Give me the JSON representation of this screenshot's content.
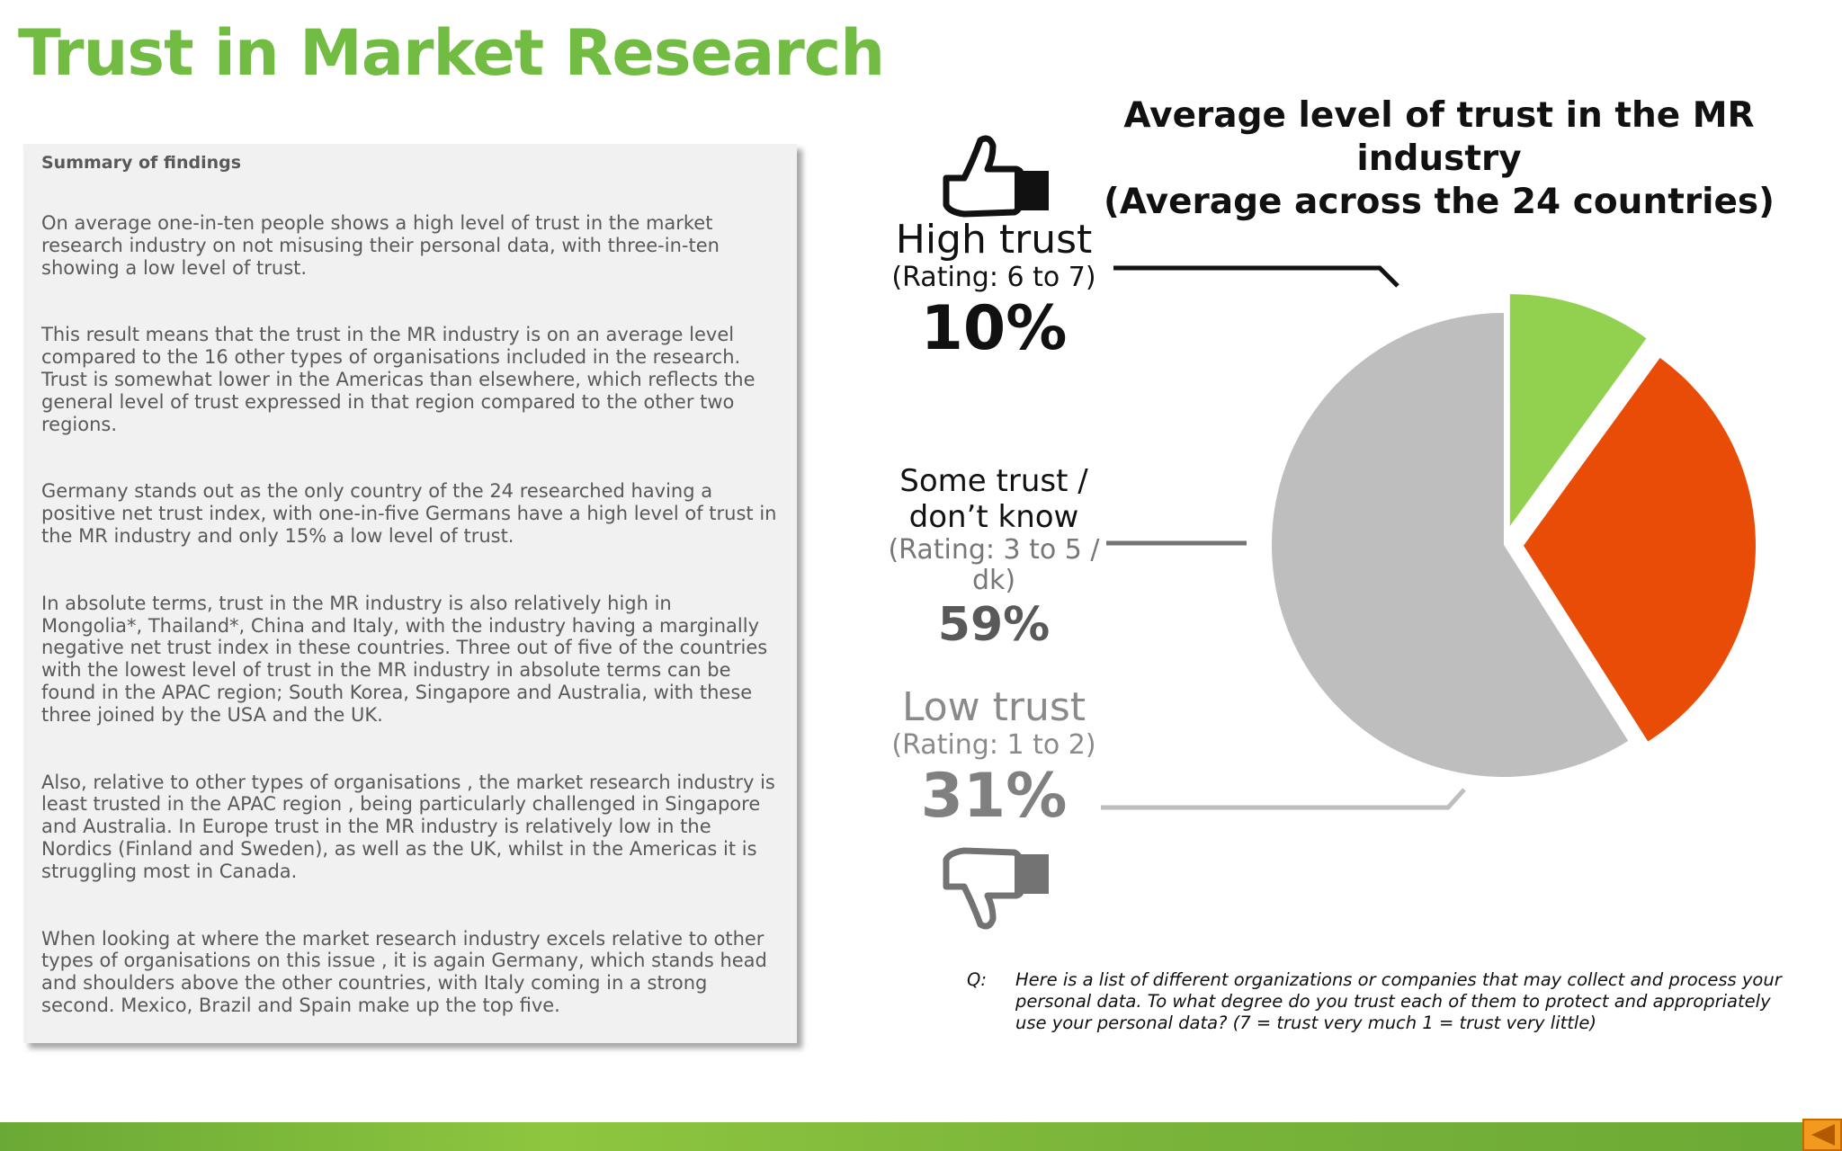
{
  "title": "Trust in Market Research",
  "summary": {
    "heading": "Summary of findings",
    "paragraphs": [
      "On average one-in-ten  people shows a high level of trust in the market research industry on not misusing their personal data, with three-in-ten showing a low level of trust.",
      "This result means that the trust in the MR industry is on an average level compared to the 16 other types of organisations included in the research. Trust is somewhat lower in the Americas than elsewhere, which reflects the general level of trust expressed in that region compared to the other two regions.",
      "Germany stands out as the only country of the 24 researched having a positive net trust index, with one-in-five Germans have a high level of trust in the MR industry and only 15% a low level of trust.",
      "In absolute terms, trust in the MR industry is also relatively high in Mongolia*, Thailand*, China and Italy, with the industry having a marginally negative net trust index in these countries. Three out of five of the countries with the lowest level of trust in the MR industry in absolute terms can be found in the APAC region; South Korea, Singapore and Australia, with these three joined by the USA and the UK.",
      "Also, relative to other types of organisations , the market research industry is least trusted in  the APAC region , being particularly challenged in Singapore and Australia. In Europe trust in the MR industry is relatively low in the Nordics (Finland and Sweden), as well as the UK, whilst in the Americas it is struggling most in Canada.",
      "When looking at where the market research industry excels relative to other types of organisations on this issue , it is again Germany, which stands head and shoulders above the other countries, with Italy coming in a strong second. Mexico, Brazil and Spain make up the top five."
    ]
  },
  "chart_data": {
    "type": "pie",
    "title_line1": "Average level of trust in the MR industry",
    "title_line2": "(Average across the 24 countries)",
    "slices": [
      {
        "name": "High trust",
        "range": "(Rating: 6 to 7)",
        "value": 10,
        "label": "10%",
        "color": "#92d050",
        "exploded": true
      },
      {
        "name": "Low trust",
        "range": "(Rating: 1 to 2)",
        "value": 31,
        "label": "31%",
        "color": "#e84c07",
        "exploded": true
      },
      {
        "name": "Some trust / don’t know",
        "range": "(Rating: 3 to 5 / dk)",
        "value": 59,
        "label": "59%",
        "color": "#bfbebf",
        "exploded": false
      }
    ]
  },
  "labels": {
    "high": {
      "name": "High trust",
      "range": "(Rating: 6 to 7)",
      "pct": "10%"
    },
    "some": {
      "name_line1": "Some trust /",
      "name_line2": "don’t know",
      "range_line1": "(Rating: 3 to 5 /",
      "range_line2": "dk)",
      "pct": "59%"
    },
    "low": {
      "name": "Low trust",
      "range": "(Rating: 1 to 2)",
      "pct": "31%"
    }
  },
  "icons": {
    "thumb_up": "thumbs-up-icon",
    "thumb_down": "thumbs-down-icon",
    "nav": "back-arrow-icon"
  },
  "question": {
    "label": "Q:",
    "text": "Here is a list of different organizations or companies that may collect and process your personal data.  To what degree do you trust each of them to protect and appropriately use your personal data? (7 = trust very much 1 = trust very little)"
  }
}
